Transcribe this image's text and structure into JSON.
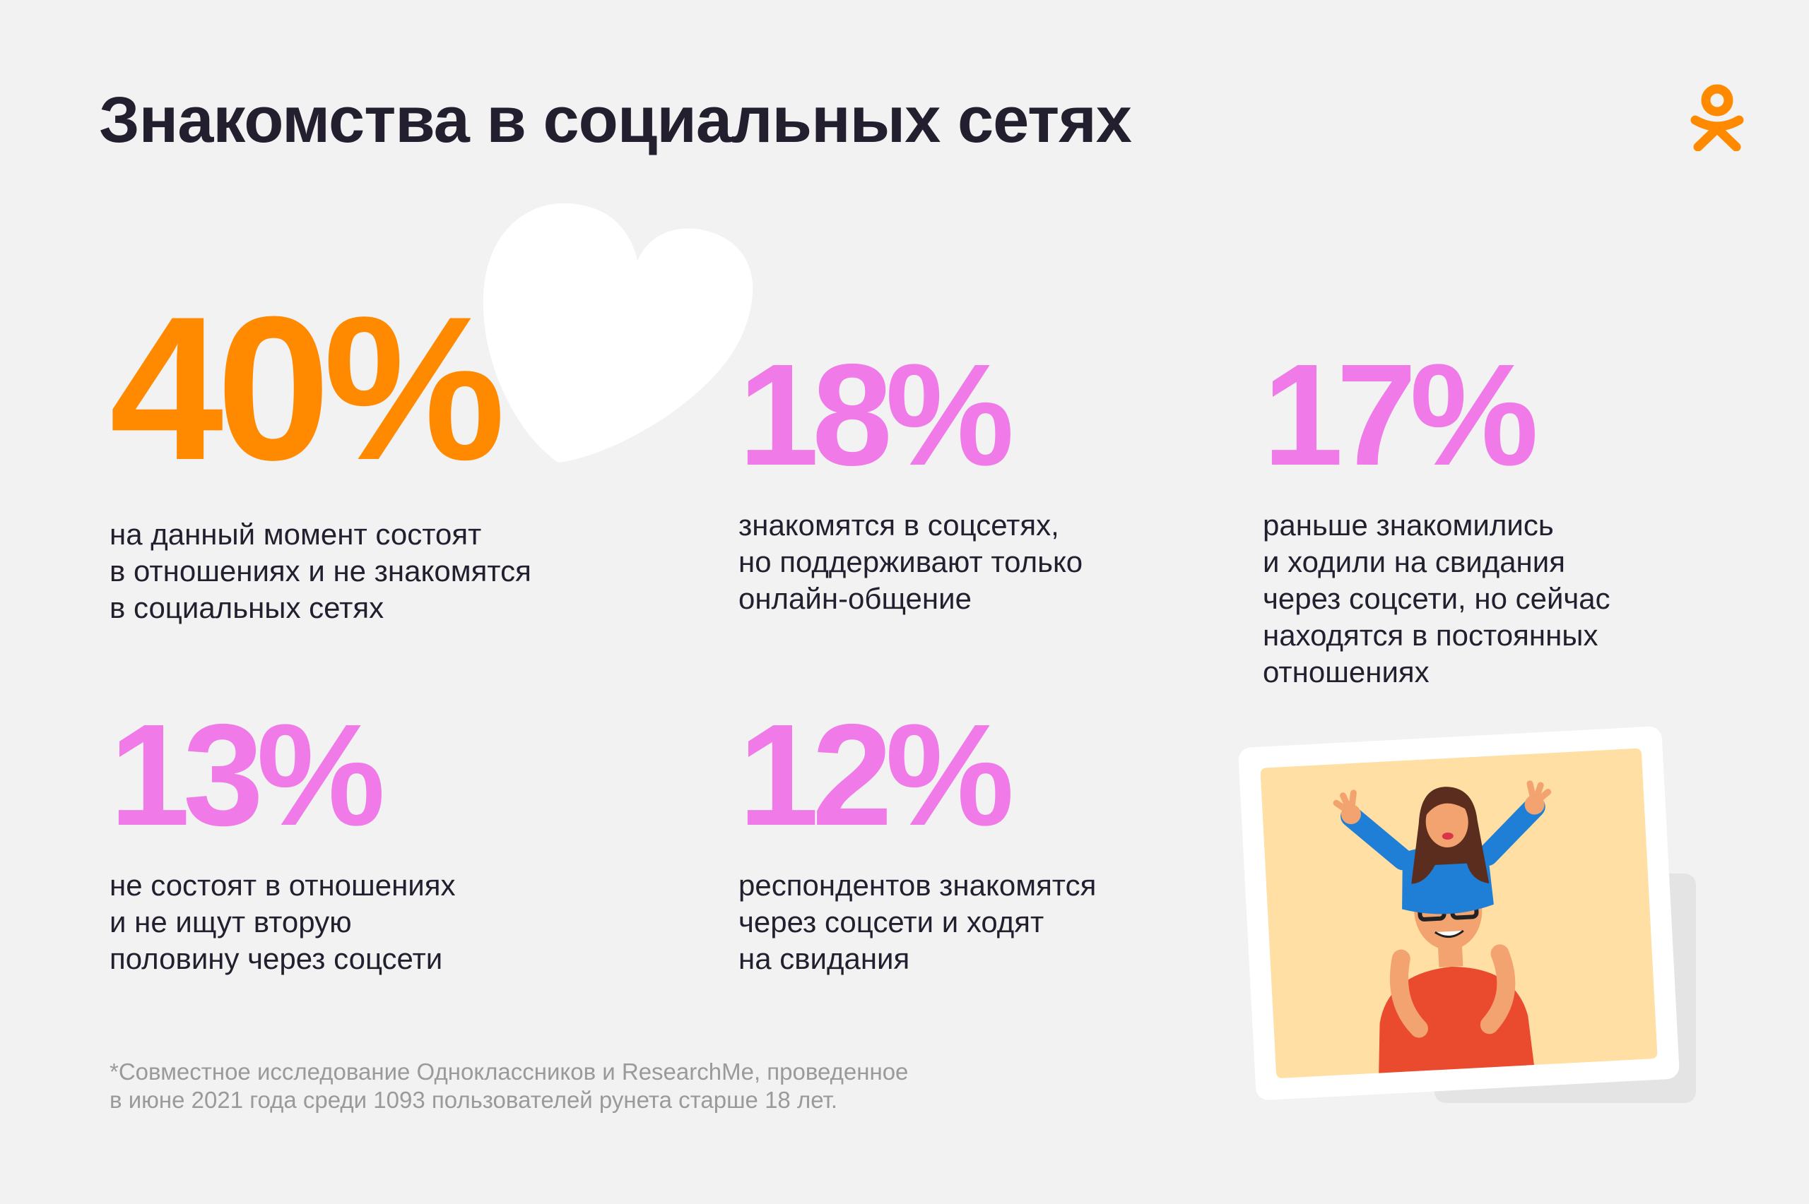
{
  "header": {
    "title": "Знакомства в социальных сетях",
    "logo_icon": "odnoklassniki-logo-icon",
    "logo_color": "#ff8a00"
  },
  "decor": {
    "heart_icon": "heart-icon"
  },
  "stats": [
    {
      "value": "40%",
      "text": "на данный момент состоят\nв отношениях и не знакомятся\nв социальных сетях",
      "color": "#ff8a00"
    },
    {
      "value": "18%",
      "text": "знакомятся в соцсетях,\nно поддерживают только\nонлайн-общение",
      "color": "#f07be8"
    },
    {
      "value": "17%",
      "text": "раньше знакомились\nи ходили на свидания\nчерез соцсети, но сейчас\nнаходятся в постоянных\nотношениях",
      "color": "#f07be8"
    },
    {
      "value": "13%",
      "text": "не состоят в отношениях\nи не ищут вторую\nполовину через соцсети",
      "color": "#f07be8"
    },
    {
      "value": "12%",
      "text": "респондентов знакомятся\nчерез соцсети и ходят\nна свидания",
      "color": "#f07be8"
    }
  ],
  "footnote": "*Совместное исследование Одноклассников и ResearchMe, проведенное\nв июне 2021 года среди 1093 пользователей рунета старше 18 лет.",
  "illustration": {
    "icon": "couple-photo-icon"
  }
}
